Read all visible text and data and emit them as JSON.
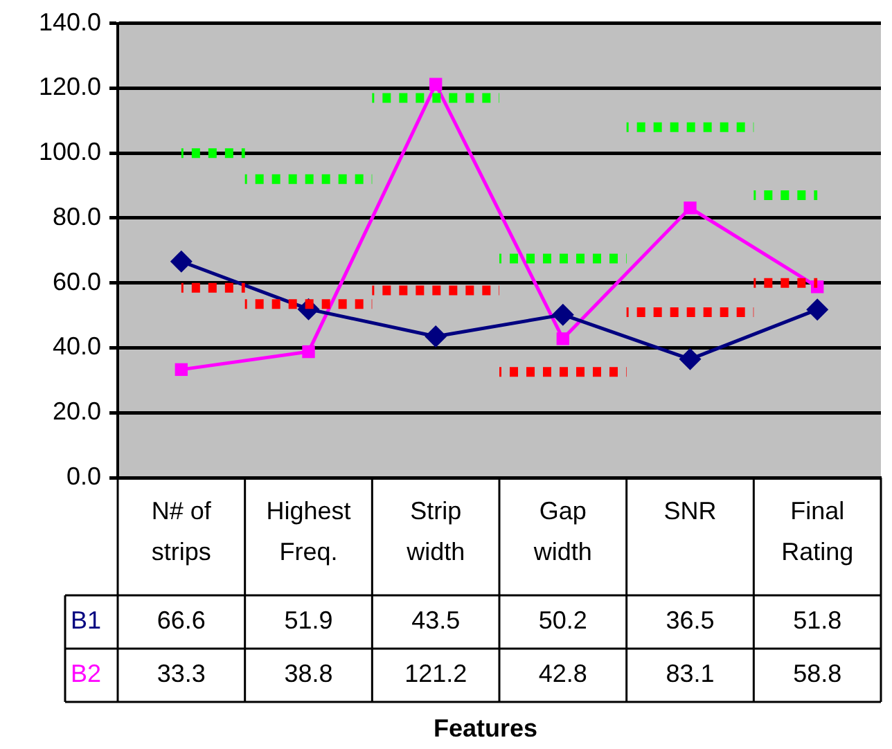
{
  "chart_data": {
    "type": "line",
    "annotations": [
      "Features"
    ],
    "categories": [
      "N# of strips",
      "Highest Freq.",
      "Strip width",
      "Gap width",
      "SNR",
      "Final Rating"
    ],
    "ylim": [
      0,
      140
    ],
    "yticks": [
      {
        "value": 0,
        "label": "0.0"
      },
      {
        "value": 20,
        "label": "20.0"
      },
      {
        "value": 40,
        "label": "40.0"
      },
      {
        "value": 60,
        "label": "60.0"
      },
      {
        "value": 80,
        "label": "80.0"
      },
      {
        "value": 100,
        "label": "100.0"
      },
      {
        "value": 120,
        "label": "120.0"
      },
      {
        "value": 140,
        "label": "140.0"
      }
    ],
    "grid": "y",
    "series": [
      {
        "name": "B1",
        "color": "#000080",
        "marker": "diamond",
        "values": [
          66.6,
          51.9,
          43.5,
          50.2,
          36.5,
          51.8
        ],
        "value_labels": [
          "66.6",
          "51.9",
          "43.5",
          "50.2",
          "36.5",
          "51.8"
        ]
      },
      {
        "name": "B2",
        "color": "#ff00ff",
        "marker": "square",
        "values": [
          33.3,
          38.8,
          121.2,
          42.8,
          83.1,
          58.8
        ],
        "value_labels": [
          "33.3",
          "38.8",
          "121.2",
          "42.8",
          "83.1",
          "58.8"
        ]
      },
      {
        "type": "step",
        "color": "#ff0000",
        "line_style": "dotted",
        "marker": "none",
        "values": [
          58.5,
          53.5,
          57.7,
          32.6,
          51,
          60
        ]
      },
      {
        "type": "step",
        "color": "#00ff00",
        "line_style": "dotted",
        "marker": "none",
        "values": [
          100,
          92,
          117,
          67.5,
          108,
          87
        ]
      }
    ]
  }
}
